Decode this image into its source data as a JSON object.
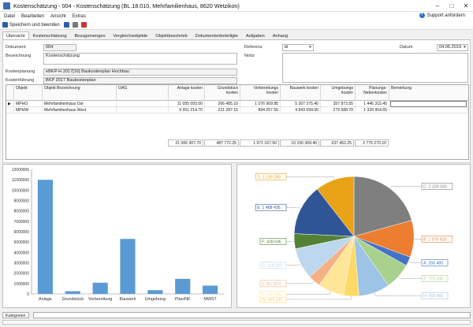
{
  "window": {
    "title": "Kostenschätzung - 004 - Kostenschätzung (BL.18.010, Mehrfamilienhaus, 8620 Wetzikon)"
  },
  "menu": [
    "Datei",
    "Bearbeiten",
    "Ansicht",
    "Extras"
  ],
  "support_label": "Support anfordern",
  "toolbar": {
    "save_close": "Speichern und beenden"
  },
  "tabs": [
    "Übersicht",
    "Kostenschätzung",
    "Bezugsmengen",
    "Vergleichsobjekte",
    "Objektbeschrieb",
    "Dokumentenbeteiligte",
    "Aufgaben",
    "Anhang"
  ],
  "form": {
    "dokument_label": "Dokument",
    "dokument_value": "004",
    "bezeichnung_label": "Bezeichnung",
    "bezeichnung_value": "Kostenschätzung",
    "kostenplanung_label": "Kostenplanung",
    "kostenplanung_value": "eBKP-H 2017[16] Baukostenplan Hochbau",
    "kostenfuehrung_label": "Kostenführung",
    "kostenfuehrung_value": "BKP 2017 Baukostenplan",
    "referenz_label": "Referenz",
    "referenz_value": "bl",
    "datum_label": "Datum",
    "datum_value": "04.06.2019",
    "notiz_label": "Notiz"
  },
  "table": {
    "headers": [
      "Objekt",
      "Objekt Bezeichnung",
      "OAG",
      "Anlage kosten",
      "Grundstück kosten",
      "Vorbereitungs kosten",
      "Bauwerk kosten",
      "Umgebungs kosten",
      "Planungs- Nebenkosten",
      "Bemerkung"
    ],
    "rows": [
      [
        "MPHO",
        "Mehrfamilienhaus Ost",
        "",
        "11 055 093.00",
        "266 485.10",
        "1 076 909.95",
        "5 307 275.40",
        "357 873.55",
        "1 446 315.45",
        ""
      ],
      [
        "MPHW",
        "Mehrfamilienhaus West",
        "",
        "9 951 214.70",
        "221 287.15",
        "894 257.55",
        "4 843 094.00",
        "279 588.70",
        "1 329 954.65",
        ""
      ]
    ],
    "totals": [
      "21 006 307.70",
      "487 772.25",
      "1 971 167.50",
      "10 150 369.40",
      "637 462.25",
      "2 776 270.10"
    ]
  },
  "status": {
    "kategorien": "Kategorien"
  },
  "chart_data": [
    {
      "type": "bar",
      "categories": [
        "Anlage",
        "Grundstück",
        "Vorbereitung",
        "Bauwerk",
        "Umgebung",
        "Plan/NK",
        "MWST"
      ],
      "values": [
        11000000,
        260000,
        1080000,
        5300000,
        360000,
        1450000,
        800000
      ],
      "ylim": [
        0,
        12000000
      ],
      "yticks": [
        "0",
        "1000000",
        "2000000",
        "3000000",
        "4000000",
        "5000000",
        "6000000",
        "7000000",
        "8000000",
        "9000000",
        "10000000",
        "11000000",
        "12000000"
      ],
      "color": "#5b9bd5",
      "grid": false
    },
    {
      "type": "pie",
      "slices": [
        {
          "label": "C: 2 239 930",
          "value": 2239930,
          "color": "#7f7f7f"
        },
        {
          "label": "B: 1 076 910",
          "value": 1076910,
          "color": "#ed7d31"
        },
        {
          "label": "A: 266 485",
          "value": 266485,
          "color": "#4472c4"
        },
        {
          "label": "Z: 775 330",
          "value": 775330,
          "color": "#a9d18e"
        },
        {
          "label": "H: 910 642",
          "value": 910642,
          "color": "#9dc3e6"
        },
        {
          "label": "W: 446 243",
          "value": 446243,
          "color": "#ffd966"
        },
        {
          "label": "V: 768 835",
          "value": 768835,
          "color": "#ffe699"
        },
        {
          "label": "J: 357 874",
          "value": 357874,
          "color": "#f4b183"
        },
        {
          "label": "G: 918 242",
          "value": 918242,
          "color": "#bdd7ee"
        },
        {
          "label": "F: 438 636",
          "value": 438636,
          "color": "#548235"
        },
        {
          "label": "E: 1 488 435",
          "value": 1488435,
          "color": "#2f5597"
        },
        {
          "label": "D: 1 139 299",
          "value": 1139299,
          "color": "#e8a317"
        }
      ]
    }
  ]
}
